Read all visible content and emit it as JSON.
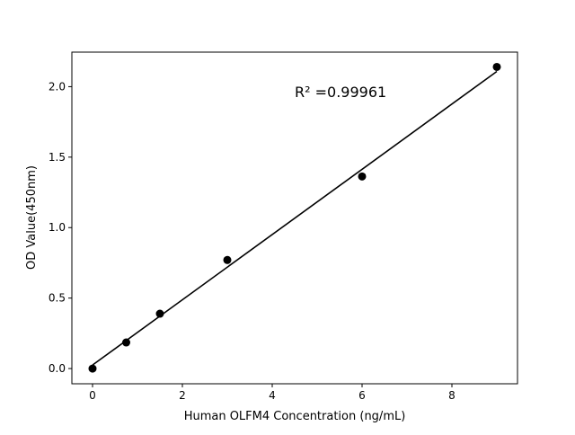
{
  "chart_data": {
    "type": "scatter",
    "title": "",
    "xlabel": "Human OLFM4 Concentration (ng/mL)",
    "ylabel": "OD Value(450nm)",
    "xlim": [
      -0.46,
      9.46
    ],
    "ylim": [
      -0.108,
      2.245
    ],
    "xticks": [
      0,
      2,
      4,
      6,
      8
    ],
    "xtick_labels": [
      "0",
      "2",
      "4",
      "6",
      "8"
    ],
    "yticks": [
      0.0,
      0.5,
      1.0,
      1.5,
      2.0
    ],
    "ytick_labels": [
      "0.0",
      "0.5",
      "1.0",
      "1.5",
      "2.0"
    ],
    "grid": false,
    "points": {
      "x": [
        0,
        0.75,
        1.5,
        3,
        6,
        9
      ],
      "y": [
        0.0,
        0.185,
        0.389,
        0.77,
        1.363,
        2.14
      ]
    },
    "fit_line": {
      "x": [
        0,
        9
      ],
      "y": [
        0.025,
        2.108
      ]
    },
    "annotation": "R² =0.99961",
    "colors": {
      "points": "#000000",
      "line": "#000000"
    }
  }
}
